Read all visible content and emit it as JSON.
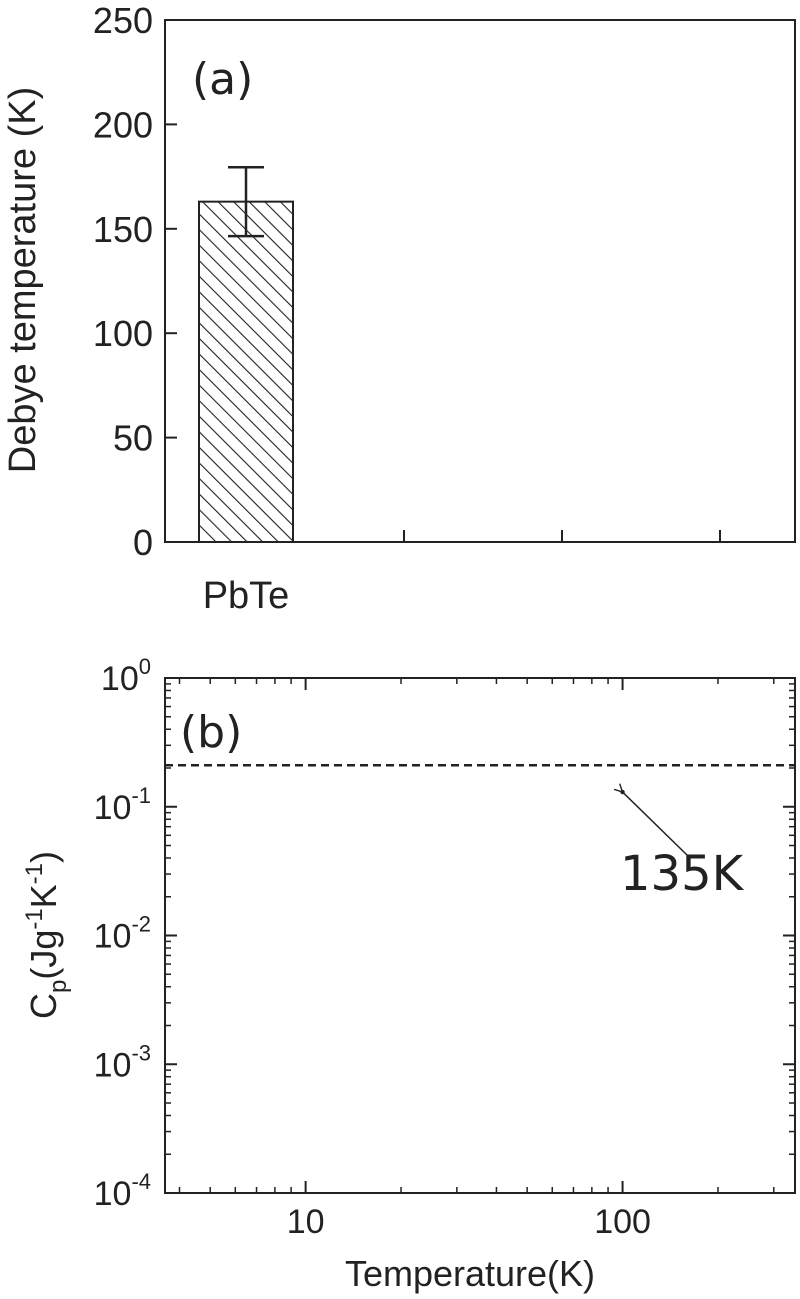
{
  "chart_data": [
    {
      "panel": "(a)",
      "type": "bar",
      "categories": [
        "PbTe"
      ],
      "values": [
        163
      ],
      "error": [
        16.5
      ],
      "ylabel": "Debye temperature (K)",
      "ylim": [
        0,
        250
      ],
      "yticks": [
        "0",
        "50",
        "100",
        "150",
        "200",
        "250"
      ],
      "bar_fill": "hatched",
      "colors": {
        "axis": "#222222",
        "bar_edge": "#222222"
      }
    },
    {
      "panel": "(b)",
      "type": "line",
      "xscale": "log",
      "yscale": "log",
      "xlabel": "Temperature(K)",
      "ylabel": "C_p(Jg^-1K^-1)",
      "xlim": [
        3.6,
        350
      ],
      "ylim": [
        0.0001,
        1
      ],
      "xticks": [
        "10",
        "100"
      ],
      "yticks": [
        {
          "base": "10",
          "exp": "0"
        },
        {
          "base": "10",
          "exp": "-1"
        },
        {
          "base": "10",
          "exp": "-2"
        },
        {
          "base": "10",
          "exp": "-3"
        },
        {
          "base": "10",
          "exp": "-4"
        }
      ],
      "series": [
        {
          "style": "dashed",
          "x": [
            3.6,
            350
          ],
          "y": [
            0.21,
            0.21
          ]
        }
      ],
      "annotation": {
        "text": "135K",
        "point": [
          100,
          0.13
        ]
      }
    }
  ]
}
